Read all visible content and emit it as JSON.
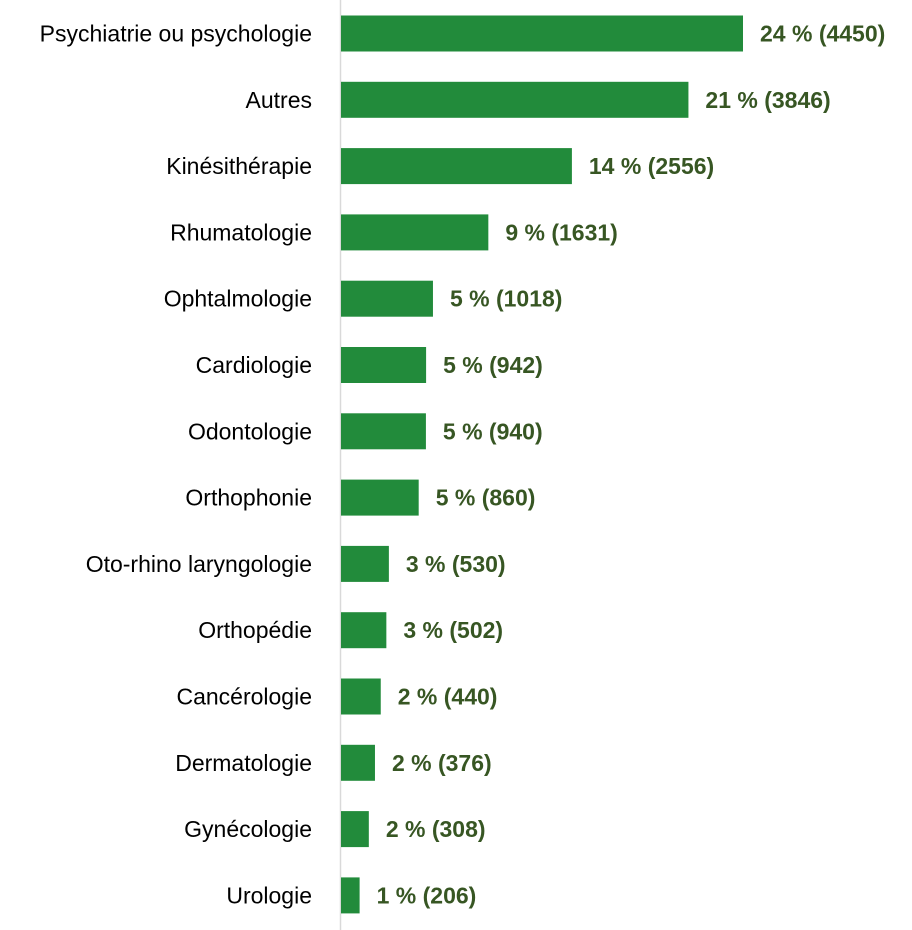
{
  "chart_data": {
    "type": "bar",
    "orientation": "horizontal",
    "categories": [
      "Psychiatrie ou psychologie",
      "Autres",
      "Kinésithérapie",
      "Rhumatologie",
      "Ophtalmologie",
      "Cardiologie",
      "Odontologie",
      "Orthophonie",
      "Oto-rhino laryngologie",
      "Orthopédie",
      "Cancérologie",
      "Dermatologie",
      "Gynécologie",
      "Urologie"
    ],
    "values": [
      4450,
      3846,
      2556,
      1631,
      1018,
      942,
      940,
      860,
      530,
      502,
      440,
      376,
      308,
      206
    ],
    "percent_labels": [
      "24 %",
      "21 %",
      "14 %",
      "9 %",
      "5 %",
      "5 %",
      "5 %",
      "5 %",
      "3 %",
      "3 %",
      "2 %",
      "2 %",
      "2 %",
      "1 %"
    ],
    "data_labels": [
      "24 % (4450)",
      "21 % (3846)",
      "14 % (2556)",
      "9 % (1631)",
      "5 % (1018)",
      "5 % (942)",
      "5 % (940)",
      "5 % (860)",
      "3 % (530)",
      "3 % (502)",
      "2 % (440)",
      "2 % (376)",
      "2 % (308)",
      "1 % (206)"
    ],
    "title": "",
    "xlabel": "",
    "ylabel": "",
    "xlim": [
      0,
      4450
    ],
    "grid": false,
    "legend": "none",
    "colors": {
      "bar": "#228b3b",
      "data_label": "#375623",
      "axis_line": "#d9d9d9"
    }
  }
}
